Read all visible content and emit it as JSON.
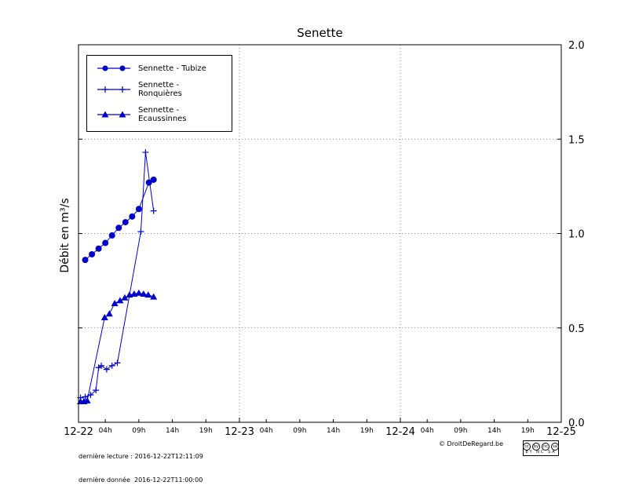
{
  "title": "Senette",
  "ylabel": "Débit en m³/s",
  "footer": {
    "line1": "dernière lecture : 2016-12-22T12:11:09",
    "line2": "dernière donnée  2016-12-22T11:00:00",
    "copyright": "© DroitDeRegard.be",
    "cc": {
      "symbols": [
        "cc",
        "by",
        "nc",
        "sa"
      ],
      "caption": "BY NC SA"
    }
  },
  "chart_data": {
    "type": "line",
    "title": "Senette",
    "xlabel": "",
    "ylabel": "Débit en m³/s",
    "x_unit": "hours since 2016-12-22 00:00",
    "x_range": [
      0,
      72
    ],
    "ylim": [
      0,
      2
    ],
    "grid": "dotted",
    "legend_position": "upper-left",
    "color": "#0000cc",
    "y_ticks": {
      "values": [
        0,
        0.5,
        1,
        1.5,
        2
      ],
      "labels": [
        "0.0",
        "0.5",
        "1.0",
        "1.5",
        "2.0"
      ]
    },
    "x_major_ticks": {
      "hours": [
        0,
        24,
        48,
        72
      ],
      "labels": [
        "12-22",
        "12-23",
        "12-24",
        "12-25"
      ]
    },
    "x_minor_ticks": {
      "hours_each_day": [
        4,
        9,
        14,
        19
      ],
      "labels": [
        "04h",
        "09h",
        "14h",
        "19h"
      ]
    },
    "gridlines": {
      "horizontal": [
        0.5,
        1.0,
        1.5
      ],
      "vertical_hours": [
        24,
        48
      ]
    },
    "series": [
      {
        "name": "Sennette - Tubize",
        "marker": "circle",
        "x": [
          1,
          2,
          3,
          4,
          5,
          6,
          7,
          8,
          9,
          10.5,
          11.2
        ],
        "values": [
          0.86,
          0.89,
          0.92,
          0.95,
          0.99,
          1.03,
          1.06,
          1.09,
          1.13,
          1.27,
          1.285
        ]
      },
      {
        "name": "Sennette - Ronquières",
        "marker": "plus",
        "x": [
          0.3,
          1,
          1.8,
          2.6,
          3,
          3.4,
          4.2,
          5,
          5.8,
          9.3,
          10,
          11.2
        ],
        "values": [
          0.13,
          0.135,
          0.145,
          0.17,
          0.29,
          0.3,
          0.28,
          0.3,
          0.315,
          1.01,
          1.43,
          1.12
        ]
      },
      {
        "name": "Sennette - Ecaussinnes",
        "marker": "triangle",
        "x": [
          0.3,
          0.8,
          1.3,
          3.9,
          4.6,
          5.4,
          6.2,
          6.9,
          7.6,
          8.3,
          9.0,
          9.7,
          10.4,
          11.2
        ],
        "values": [
          0.11,
          0.11,
          0.115,
          0.555,
          0.575,
          0.63,
          0.645,
          0.66,
          0.675,
          0.68,
          0.685,
          0.68,
          0.675,
          0.665
        ]
      }
    ]
  }
}
